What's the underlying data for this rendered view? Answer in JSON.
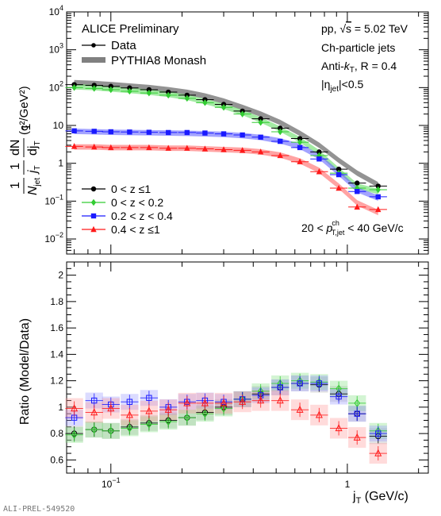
{
  "chart_data": [
    {
      "type": "scatter",
      "panel": "top",
      "yscale": "log",
      "xscale": "log",
      "ylabel": "1/N_jet 1/j_T dN/dj_T (c²/GeV²)",
      "ylim": [
        0.004,
        10000
      ],
      "xlim": [
        0.065,
        2.2
      ],
      "yticks": [
        {
          "v": 0.01,
          "label": "10",
          "exp": "−2"
        },
        {
          "v": 0.1,
          "label": "10",
          "exp": "−1"
        },
        {
          "v": 1,
          "label": "1",
          "exp": ""
        },
        {
          "v": 10,
          "label": "10",
          "exp": ""
        },
        {
          "v": 100,
          "label": "10",
          "exp": "2"
        },
        {
          "v": 1000,
          "label": "10",
          "exp": "3"
        },
        {
          "v": 10000,
          "label": "10",
          "exp": "4"
        }
      ],
      "x": [
        0.07,
        0.085,
        0.1,
        0.12,
        0.145,
        0.175,
        0.21,
        0.25,
        0.3,
        0.36,
        0.43,
        0.52,
        0.63,
        0.76,
        0.92,
        1.1,
        1.35
      ],
      "series": [
        {
          "name": "0 < z ≤1",
          "color": "#000000",
          "marker": "circle",
          "values": [
            120,
            115,
            108,
            98,
            88,
            76,
            63,
            48,
            36,
            24,
            15,
            8.5,
            4.5,
            2.0,
            0.7,
            0.3,
            0.25
          ]
        },
        {
          "name": "0 < z < 0.2",
          "color": "#33cc33",
          "marker": "diamond",
          "values": [
            100,
            95,
            88,
            80,
            72,
            63,
            52,
            40,
            30,
            20,
            12,
            6.8,
            3.6,
            1.6,
            0.55,
            0.22,
            0.2
          ]
        },
        {
          "name": "0.2 < z < 0.4",
          "color": "#1a1aff",
          "marker": "square",
          "values": [
            7.2,
            7.0,
            6.8,
            6.7,
            6.6,
            6.5,
            6.5,
            6.3,
            6.0,
            5.6,
            4.9,
            3.8,
            2.6,
            1.3,
            0.5,
            0.18,
            0.13
          ]
        },
        {
          "name": "0.4 < z ≤1",
          "color": "#ff1a1a",
          "marker": "triangle",
          "values": [
            2.8,
            2.7,
            2.6,
            2.6,
            2.6,
            2.5,
            2.5,
            2.4,
            2.3,
            2.2,
            2.0,
            1.6,
            1.1,
            0.6,
            0.22,
            0.07,
            0.06
          ]
        }
      ],
      "model_bands": [
        {
          "color": "#808080",
          "values": [
            135,
            128,
            120,
            110,
            100,
            88,
            75,
            60,
            44,
            30,
            20,
            12,
            6.2,
            3.0,
            1.2,
            0.55,
            0.27
          ]
        },
        {
          "color": "#66dd66",
          "values": [
            105,
            100,
            92,
            84,
            76,
            66,
            55,
            43,
            32,
            22,
            14,
            8,
            4.2,
            1.9,
            0.65,
            0.25,
            0.18
          ]
        },
        {
          "color": "#6666ff",
          "values": [
            7.0,
            6.8,
            6.6,
            6.5,
            6.4,
            6.3,
            6.2,
            6.0,
            5.8,
            5.4,
            4.8,
            3.9,
            2.8,
            1.5,
            0.55,
            0.2,
            0.12
          ]
        },
        {
          "color": "#ff6666",
          "values": [
            2.7,
            2.7,
            2.6,
            2.6,
            2.6,
            2.5,
            2.5,
            2.4,
            2.3,
            2.2,
            2.0,
            1.65,
            1.15,
            0.65,
            0.25,
            0.09,
            0.05
          ]
        }
      ]
    },
    {
      "type": "scatter",
      "panel": "bottom",
      "xscale": "log",
      "xlabel": "j_T (GeV/c)",
      "ylabel": "Ratio (Model/Data)",
      "ylim": [
        0.5,
        2.1
      ],
      "xlim": [
        0.065,
        2.2
      ],
      "yticks": [
        0.6,
        0.8,
        1,
        1.2,
        1.4,
        1.6,
        1.8,
        2
      ],
      "ytick_labels": [
        "0.6",
        "0.8",
        "1",
        "1.2",
        "1.4",
        "1.6",
        "1.8",
        "2"
      ],
      "xticks": [
        {
          "v": 0.1,
          "label": "10",
          "exp": "−1"
        },
        {
          "v": 1,
          "label": "1",
          "exp": ""
        }
      ],
      "x": [
        0.07,
        0.085,
        0.1,
        0.12,
        0.145,
        0.175,
        0.21,
        0.25,
        0.3,
        0.36,
        0.43,
        0.52,
        0.63,
        0.76,
        0.92,
        1.1,
        1.35
      ],
      "series": [
        {
          "name": "0 < z ≤1",
          "color": "#000000",
          "marker": "circle",
          "values": [
            0.8,
            0.83,
            0.82,
            0.85,
            0.88,
            0.9,
            0.92,
            0.96,
            1.0,
            1.06,
            1.1,
            1.15,
            1.18,
            1.17,
            1.1,
            0.95,
            0.78
          ]
        },
        {
          "name": "0 < z < 0.2",
          "color": "#33cc33",
          "marker": "diamond",
          "values": [
            0.79,
            0.83,
            0.82,
            0.84,
            0.87,
            0.89,
            0.92,
            0.95,
            0.99,
            1.06,
            1.12,
            1.18,
            1.2,
            1.19,
            1.14,
            1.03,
            0.82
          ]
        },
        {
          "name": "0.2 < z < 0.4",
          "color": "#1a1aff",
          "marker": "square",
          "values": [
            0.92,
            1.05,
            1.02,
            1.04,
            1.07,
            1.0,
            1.04,
            1.05,
            1.04,
            1.06,
            1.09,
            1.15,
            1.18,
            1.18,
            1.08,
            0.95,
            0.8
          ]
        },
        {
          "name": "0.4 < z ≤1",
          "color": "#ff1a1a",
          "marker": "triangle",
          "values": [
            0.99,
            0.96,
            0.99,
            0.94,
            0.97,
            0.98,
            1.03,
            1.03,
            1.03,
            1.04,
            1.05,
            1.05,
            0.98,
            0.94,
            0.84,
            0.77,
            0.65
          ]
        }
      ]
    }
  ],
  "text": {
    "experiment": "ALICE Preliminary",
    "legend_data": "Data",
    "legend_model": "PYTHIA8 Monash",
    "system_pp": "pp,",
    "system_sqrt": "√",
    "system_s": "s",
    "system_energy": " = 5.02 TeV",
    "jets": "Ch-particle jets",
    "algo_a": "Anti-",
    "algo_k": "k",
    "algo_t": "T",
    "algo_r": ", R = 0.4",
    "eta_a": "|η",
    "eta_sub": "jet",
    "eta_b": "|<0.5",
    "pt_a": "20 < ",
    "pt_p": "p",
    "pt_sup": "ch",
    "pt_sub": "T,jet",
    "pt_b": " < 40 GeV/c",
    "ylabel_top_unit": "(c²/GeV²)",
    "ylabel_bottom": "Ratio (Model/Data)",
    "xlabel_j": "j",
    "xlabel_t": "T",
    "xlabel_unit": " (GeV/c)",
    "watermark": "ALI-PREL-549520"
  }
}
